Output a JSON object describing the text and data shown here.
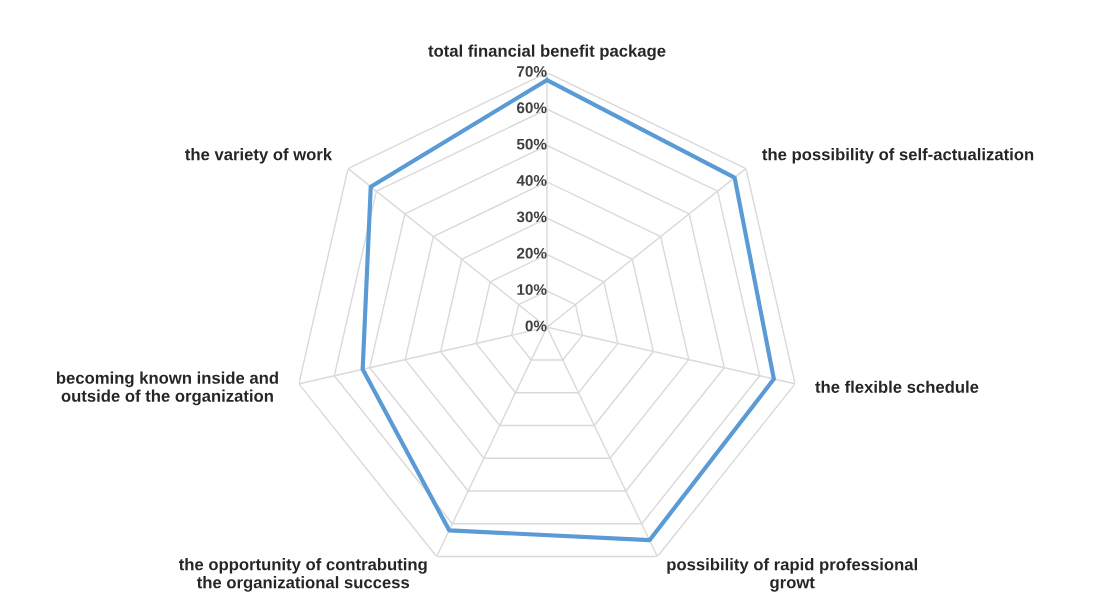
{
  "chart_data": {
    "type": "radar",
    "categories": [
      "total financial benefit package",
      "the possibility of self-actualization",
      "the flexible schedule",
      "possibility of rapid professional\ngrowt",
      "the opportunity of contrabuting\nthe organizational success",
      "becoming known inside and\noutside of the organization",
      "the variety of work"
    ],
    "series": [
      {
        "color": "#5b9bd5",
        "values": [
          68,
          66,
          64,
          65,
          62,
          52,
          62
        ]
      }
    ],
    "ylim": [
      0,
      70
    ],
    "yticks": [
      {
        "value": 0,
        "label": "0%"
      },
      {
        "value": 10,
        "label": "10%"
      },
      {
        "value": 20,
        "label": "20%"
      },
      {
        "value": 30,
        "label": "30%"
      },
      {
        "value": 40,
        "label": "40%"
      },
      {
        "value": 50,
        "label": "50%"
      },
      {
        "value": 60,
        "label": "60%"
      },
      {
        "value": 70,
        "label": "70%"
      }
    ],
    "grid": true,
    "marker": "none",
    "line_style": "solid"
  }
}
